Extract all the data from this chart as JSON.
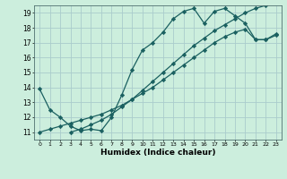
{
  "xlabel": "Humidex (Indice chaleur)",
  "bg_color": "#cceedd",
  "grid_color": "#aacccc",
  "line_color": "#1a6060",
  "xlim": [
    -0.5,
    23.5
  ],
  "ylim": [
    10.5,
    19.5
  ],
  "xticks": [
    0,
    1,
    2,
    3,
    4,
    5,
    6,
    7,
    8,
    9,
    10,
    11,
    12,
    13,
    14,
    15,
    16,
    17,
    18,
    19,
    20,
    21,
    22,
    23
  ],
  "yticks": [
    11,
    12,
    13,
    14,
    15,
    16,
    17,
    18,
    19
  ],
  "line1_x": [
    0,
    1,
    2,
    3,
    4,
    5,
    6,
    7,
    8,
    9,
    10,
    11,
    12,
    13,
    14,
    15,
    16,
    17,
    18,
    19,
    20,
    21,
    22,
    23
  ],
  "line1_y": [
    13.9,
    12.5,
    12.0,
    11.4,
    11.1,
    11.2,
    11.1,
    12.0,
    13.5,
    15.2,
    16.5,
    17.0,
    17.7,
    18.6,
    19.1,
    19.3,
    18.3,
    19.1,
    19.3,
    18.8,
    18.3,
    17.2,
    17.2,
    17.6
  ],
  "line2_x": [
    0,
    1,
    2,
    3,
    4,
    5,
    6,
    7,
    8,
    9,
    10,
    11,
    12,
    13,
    14,
    15,
    16,
    17,
    18,
    19,
    20,
    21,
    22,
    23
  ],
  "line2_y": [
    11.0,
    11.2,
    11.4,
    11.6,
    11.8,
    12.0,
    12.2,
    12.5,
    12.8,
    13.2,
    13.6,
    14.0,
    14.5,
    15.0,
    15.5,
    16.0,
    16.5,
    17.0,
    17.4,
    17.7,
    17.9,
    17.2,
    17.2,
    17.5
  ],
  "line3_x": [
    3,
    4,
    5,
    6,
    7,
    8,
    9,
    10,
    11,
    12,
    13,
    14,
    15,
    16,
    17,
    18,
    19,
    20,
    21,
    22,
    23
  ],
  "line3_y": [
    11.0,
    11.2,
    11.5,
    11.8,
    12.2,
    12.7,
    13.2,
    13.8,
    14.4,
    15.0,
    15.6,
    16.2,
    16.8,
    17.3,
    17.8,
    18.2,
    18.6,
    19.0,
    19.3,
    19.5,
    19.75
  ]
}
